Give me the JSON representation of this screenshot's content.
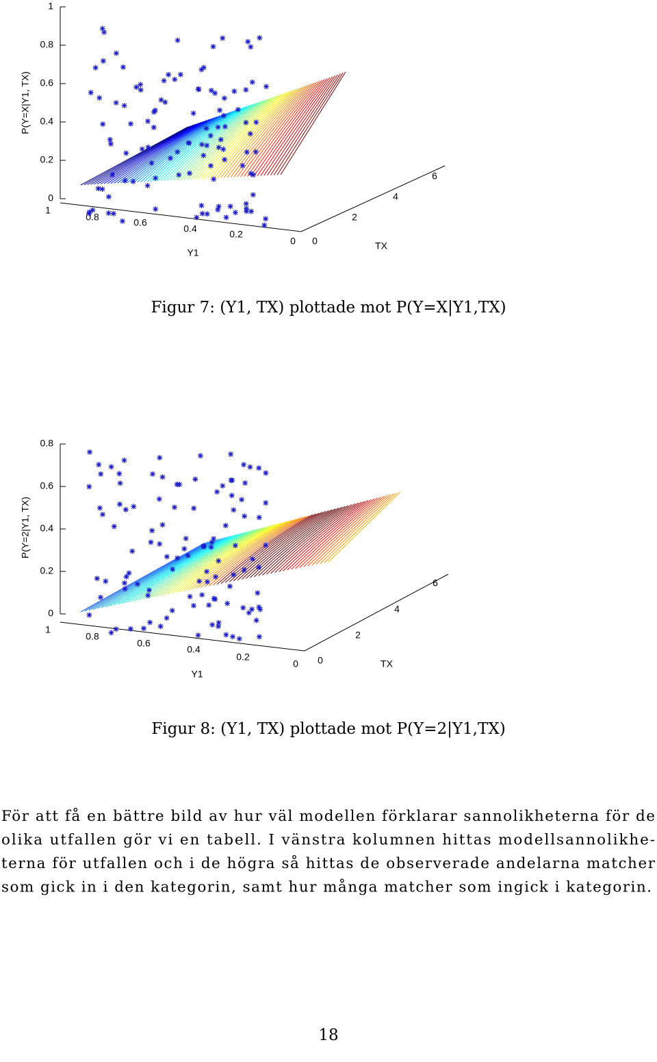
{
  "figures": [
    {
      "zlabel": "P(Y=X|Y1, TX)",
      "zticks": [
        0,
        0.2,
        0.4,
        0.6,
        0.8,
        1
      ],
      "y1label": "Y1",
      "y1ticks": [
        1,
        0.8,
        0.6,
        0.4,
        0.2,
        0
      ],
      "txlabel": "TX",
      "txticks": [
        0,
        2,
        4,
        6
      ],
      "caption": "Figur 7: (Y1, TX) plottade mot P(Y=X|Y1,TX)"
    },
    {
      "zlabel": "P(Y=2|Y1, TX)",
      "zticks": [
        0,
        0.2,
        0.4,
        0.6,
        0.8
      ],
      "y1label": "Y1",
      "y1ticks": [
        1,
        0.8,
        0.6,
        0.4,
        0.2,
        0
      ],
      "txlabel": "TX",
      "txticks": [
        0,
        2,
        4,
        6
      ],
      "caption": "Figur 8: (Y1, TX) plottade mot P(Y=2|Y1,TX)"
    }
  ],
  "paragraph_lines": [
    "För att få en bättre bild av hur väl modellen förklarar sannolikheterna för de",
    "olika utfallen gör vi en tabell. I vänstra kolumnen hittas modellsannolikhe-",
    "terna för utfallen och i de högra så hittas de observerade andelarna matcher",
    "som gick in i den kategorin, samt hur många matcher som ingick i kategorin."
  ],
  "page_number": "18"
}
